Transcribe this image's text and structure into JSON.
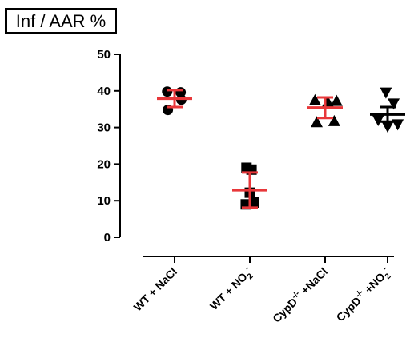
{
  "chart_data": {
    "type": "scatter",
    "title": "Inf / AAR %",
    "xlabel": "",
    "ylabel": "",
    "ylim": [
      0,
      50
    ],
    "yticks": [
      0,
      10,
      20,
      30,
      40,
      50
    ],
    "categories": [
      {
        "main": "WT + NaCl",
        "parts": [
          "WT + NaCl"
        ]
      },
      {
        "main": "WT + NO2-",
        "parts": [
          "WT + NO",
          "2",
          "-"
        ]
      },
      {
        "main": "CypD-/- +NaCl",
        "parts": [
          "CypD",
          "-/-",
          " +NaCl"
        ]
      },
      {
        "main": "CypD-/- +NO2-",
        "parts": [
          "CypD",
          "-/-",
          " +NO",
          "2",
          "-"
        ]
      }
    ],
    "groups": [
      {
        "marker": "circle",
        "mean": 37.9,
        "error": 2.3,
        "bar_color": "#e8373a",
        "points": [
          [
            -0.22,
            39.8
          ],
          [
            0.18,
            39.6
          ],
          [
            -0.2,
            34.8
          ],
          [
            0.2,
            37.6
          ]
        ]
      },
      {
        "marker": "square",
        "mean": 12.9,
        "error": 4.8,
        "bar_color": "#e8373a",
        "points": [
          [
            -0.1,
            19.0
          ],
          [
            0.05,
            18.5
          ],
          [
            -0.12,
            9.0
          ],
          [
            0.12,
            9.5
          ],
          [
            0.0,
            12.2
          ]
        ]
      },
      {
        "marker": "triangle",
        "mean": 35.4,
        "error": 2.8,
        "bar_color": "#e8373a",
        "points": [
          [
            -0.3,
            37.5
          ],
          [
            0.08,
            37.0
          ],
          [
            0.34,
            37.3
          ],
          [
            -0.25,
            31.5
          ],
          [
            0.27,
            31.8
          ]
        ]
      },
      {
        "marker": "triangle-down",
        "mean": 33.6,
        "error": 2.0,
        "bar_color": "#000000",
        "points": [
          [
            -0.05,
            39.5
          ],
          [
            0.18,
            36.5
          ],
          [
            -0.28,
            32.0
          ],
          [
            0.0,
            30.2
          ],
          [
            0.3,
            30.8
          ]
        ]
      }
    ],
    "marker_color": "#000000",
    "grid": false
  }
}
